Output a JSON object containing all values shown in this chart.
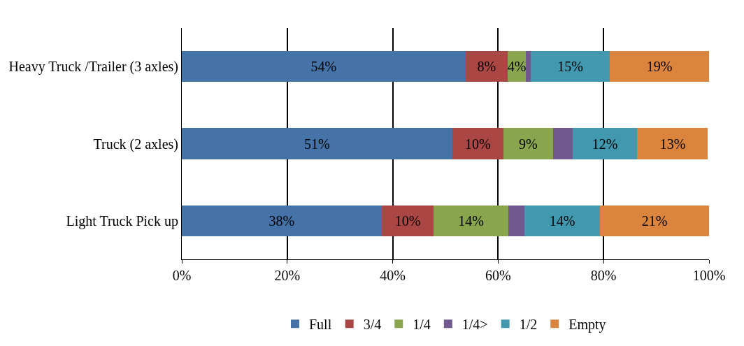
{
  "chart_data": {
    "type": "bar",
    "orientation": "horizontal",
    "stacked": true,
    "categories": [
      "Heavy Truck /Trailer (3 axles)",
      "Truck (2 axles)",
      "Light Truck Pick up"
    ],
    "series": [
      {
        "name": "Full",
        "color": "#4572a7",
        "values": [
          53.8,
          51.3,
          37.9
        ],
        "value_labels": [
          "54%",
          "51%",
          "38%"
        ]
      },
      {
        "name": "3/4",
        "color": "#aa4643",
        "values": [
          8.0,
          9.7,
          9.9
        ],
        "value_labels": [
          "8%",
          "10%",
          "10%"
        ]
      },
      {
        "name": "1/4",
        "color": "#89a54e",
        "values": [
          3.5,
          9.4,
          14.1
        ],
        "value_labels": [
          "4%",
          "9%",
          "14%"
        ]
      },
      {
        "name": "1/4>",
        "color": "#71588f",
        "values": [
          0.9,
          3.7,
          3.1
        ],
        "value_labels": [
          null,
          null,
          null
        ]
      },
      {
        "name": "1/2",
        "color": "#4198af",
        "values": [
          15.0,
          12.3,
          14.3
        ],
        "value_labels": [
          "15%",
          "12%",
          "14%"
        ]
      },
      {
        "name": "Empty",
        "color": "#db843d",
        "values": [
          18.8,
          13.4,
          20.7
        ],
        "value_labels": [
          "19%",
          "13%",
          "21%"
        ]
      }
    ],
    "xlim": [
      0,
      100
    ],
    "xticks": [
      {
        "value": 0,
        "label": "0%"
      },
      {
        "value": 20,
        "label": "20%"
      },
      {
        "value": 40,
        "label": "40%"
      },
      {
        "value": 60,
        "label": "60%"
      },
      {
        "value": 80,
        "label": "80%"
      },
      {
        "value": 100,
        "label": "100%"
      }
    ],
    "grid": "x",
    "legend": "bottom"
  }
}
